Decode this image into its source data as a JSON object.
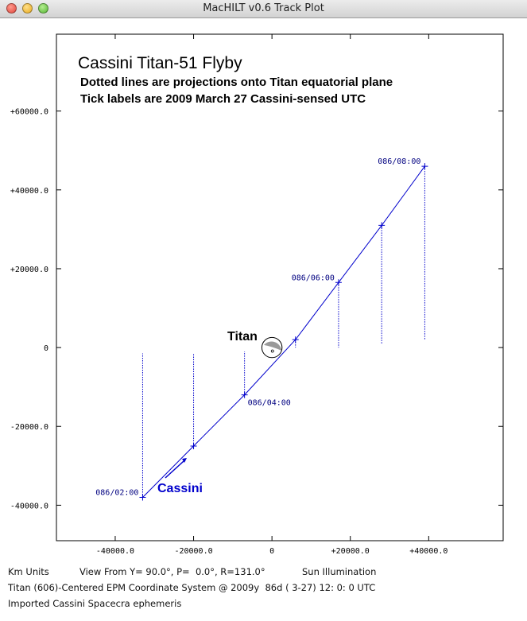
{
  "window": {
    "title": "MacHILT v0.6 Track Plot"
  },
  "colors": {
    "track": "#0000cc",
    "label": "#000080",
    "cassini_label": "#0000cc",
    "text": "#000000"
  },
  "chart_data": {
    "type": "line",
    "title": "Cassini Titan-51 Flyby",
    "subtitle_lines": [
      "Dotted lines are projections onto Titan equatorial plane",
      "Tick labels are 2009 March 27 Cassini-sensed UTC"
    ],
    "xlabel": "",
    "ylabel": "",
    "xlim": [
      -55000,
      59000
    ],
    "ylim": [
      -49000,
      79500
    ],
    "x_ticks": [
      -40000,
      -20000,
      0,
      20000,
      40000
    ],
    "x_tick_labels": [
      "-40000.0",
      "-20000.0",
      "0",
      "+20000.0",
      "+40000.0"
    ],
    "y_ticks": [
      60000,
      40000,
      20000,
      0,
      -20000,
      -40000
    ],
    "y_tick_labels": [
      "+60000.0",
      "+40000.0",
      "+20000.0",
      "0",
      "-20000.0",
      "-40000.0"
    ],
    "grid": false,
    "series": [
      {
        "name": "Cassini",
        "x": [
          -33000,
          -20000,
          -7000,
          6000,
          17000,
          28000,
          39000
        ],
        "y": [
          -38000,
          -25000,
          -12000,
          2000,
          16500,
          31000,
          46000
        ],
        "projection_base_y": [
          -1500,
          -1500,
          -1000,
          0,
          0,
          1000,
          2000
        ]
      }
    ],
    "tick_time_labels": [
      {
        "text": "086/02:00",
        "x": -33000,
        "y": -38000,
        "anchor": "end"
      },
      {
        "text": "086/04:00",
        "x": -7000,
        "y": -12000,
        "anchor": "start"
      },
      {
        "text": "086/06:00",
        "x": 17000,
        "y": 16500,
        "anchor": "end"
      },
      {
        "text": "086/08:00",
        "x": 39000,
        "y": 46000,
        "anchor": "end"
      }
    ],
    "body": {
      "name": "Titan",
      "x": 0,
      "y": 0,
      "radius_km": 2575
    },
    "annotations": [
      {
        "text": "Titan",
        "kind": "body_label"
      },
      {
        "text": "Cassini",
        "kind": "spacecraft_label"
      }
    ]
  },
  "footer": {
    "units": "Km Units",
    "view": "View From Y= 90.0°, P=  0.0°, R=131.0°",
    "illumination": "Sun Illumination",
    "coord_system": "Titan (606)-Centered EPM Coordinate System @ 2009y  86d ( 3-27) 12: 0: 0 UTC",
    "ephemeris": "Imported Cassini Spacecra ephemeris"
  }
}
